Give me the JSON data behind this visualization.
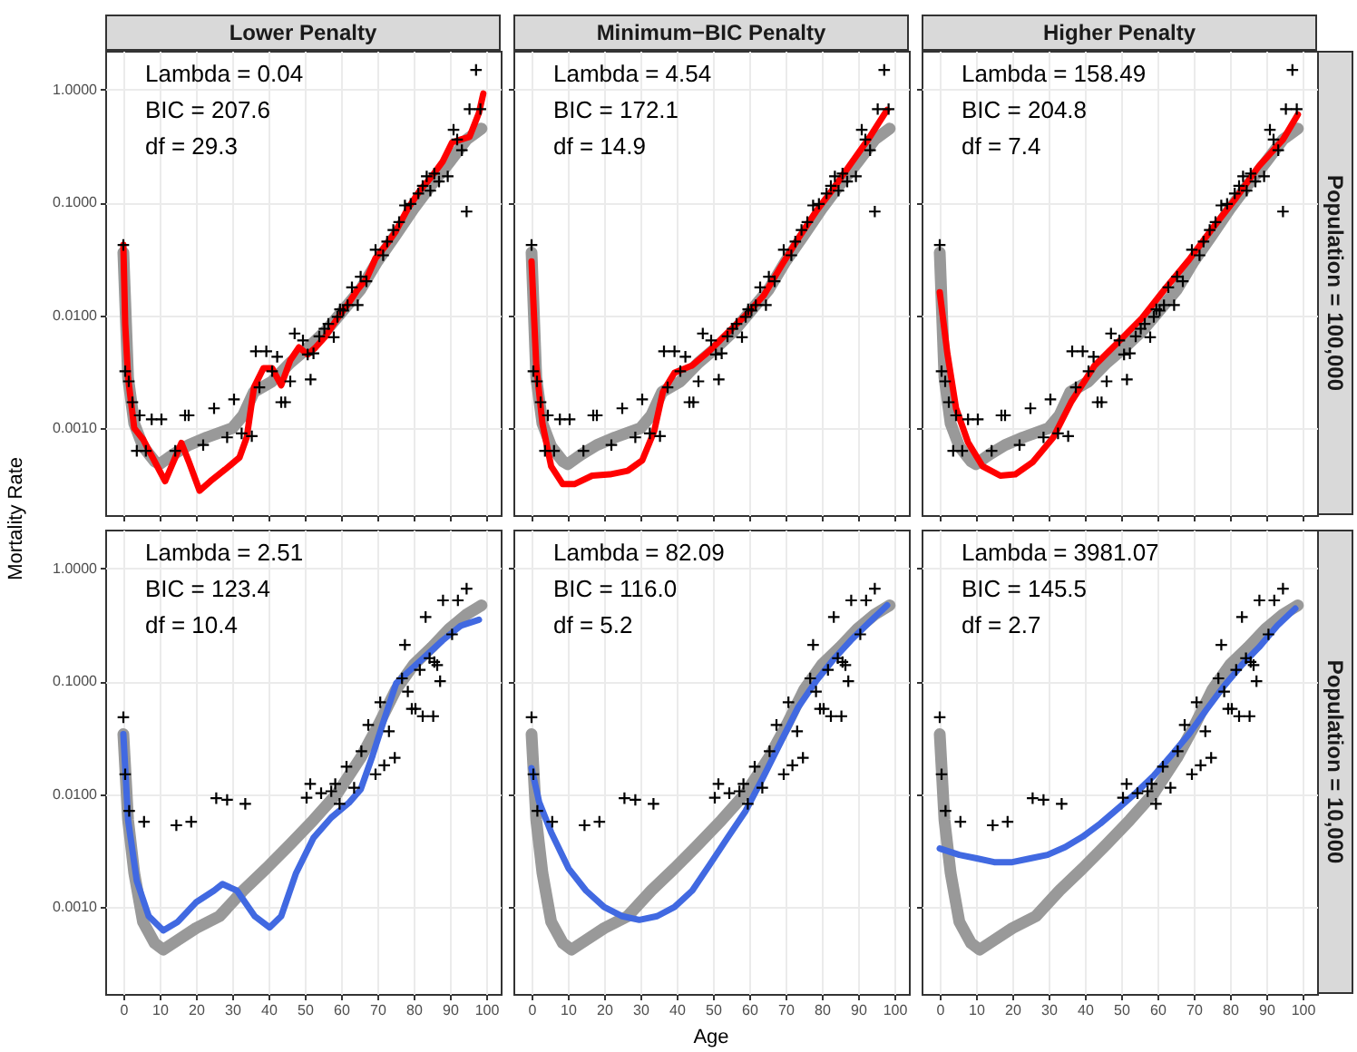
{
  "chart_data": [
    {
      "type": "line",
      "title": "Lower Penalty",
      "ylabel": "Mortality Rate",
      "annotations": [
        "Lambda = 0.04",
        "BIC = 207.6",
        "df = 29.3"
      ],
      "xlim": [
        -5,
        104
      ],
      "ylim": [
        0.00017,
        2.2
      ],
      "log": "y",
      "grid": true,
      "tick_labels": "y",
      "xticks": [
        0,
        10,
        20,
        30,
        40,
        50,
        60,
        70,
        80,
        90,
        100
      ],
      "yticks": [
        {
          "value": 0.001,
          "label": "0.0010"
        },
        {
          "value": 0.01,
          "label": "0.0100"
        },
        {
          "value": 0.1,
          "label": "0.1000"
        },
        {
          "value": 1,
          "label": "1.0000"
        }
      ],
      "series": [
        {
          "color": "#999999",
          "x": [
            0,
            1.3,
            3,
            5.4,
            8.6,
            10,
            13.5,
            18,
            23,
            30,
            33,
            36,
            41,
            46,
            51,
            56,
            60.5,
            65.4,
            70,
            75,
            80,
            85,
            90,
            94.6,
            98.7
          ],
          "values": [
            0.036,
            0.0028,
            0.0011,
            0.00069,
            0.00051,
            0.00048,
            0.00058,
            0.00071,
            0.00083,
            0.001,
            0.0013,
            0.0021,
            0.0026,
            0.0038,
            0.0052,
            0.0074,
            0.011,
            0.017,
            0.03,
            0.051,
            0.088,
            0.144,
            0.23,
            0.36,
            0.45
          ]
        },
        {
          "color": "#ff0000",
          "x": [
            0,
            0.5,
            1.3,
            3,
            5.4,
            8.6,
            11.5,
            14.3,
            16,
            18,
            21,
            24,
            28,
            32,
            34,
            36,
            38.6,
            41,
            43.5,
            46,
            48.4,
            50.8,
            53,
            55.7,
            59,
            62,
            64.6,
            67,
            69.5,
            72.7,
            75,
            78.4,
            81.7,
            85,
            88,
            90.6,
            93,
            95.4,
            98,
            99.2
          ],
          "values": [
            0.042,
            0.0084,
            0.0028,
            0.001,
            0.0008,
            0.00051,
            0.00034,
            0.00055,
            0.00074,
            0.00051,
            0.00028,
            0.00034,
            0.00043,
            0.00055,
            0.00083,
            0.0023,
            0.0034,
            0.0034,
            0.0024,
            0.004,
            0.0052,
            0.0045,
            0.0052,
            0.0065,
            0.0094,
            0.0127,
            0.017,
            0.021,
            0.032,
            0.043,
            0.055,
            0.088,
            0.127,
            0.17,
            0.23,
            0.34,
            0.36,
            0.38,
            0.62,
            0.92
          ]
        },
        {
          "type": "scatter",
          "marker": "cross",
          "color": "#000000",
          "x": [
            0,
            0.5,
            1.5,
            2.5,
            3.7,
            4.5,
            6.2,
            7.8,
            10.5,
            14.3,
            17,
            18,
            22,
            25,
            28.6,
            30.5,
            32.6,
            35.4,
            36.5,
            37.5,
            39.4,
            41,
            42.4,
            43.5,
            44.6,
            46,
            47.2,
            49.5,
            50.8,
            51.6,
            52.4,
            54,
            55.4,
            56.5,
            58,
            59,
            59.7,
            60.6,
            61.8,
            63,
            64.6,
            65.4,
            67,
            69.5,
            71.6,
            72.7,
            74.4,
            76,
            77.6,
            79.2,
            81.3,
            82.5,
            83.6,
            84.6,
            85.7,
            87,
            89.4,
            91,
            92,
            93.3,
            94.6,
            95.4,
            97.2,
            98.4
          ],
          "values": [
            0.042,
            0.0032,
            0.0026,
            0.0017,
            0.00063,
            0.0013,
            0.00063,
            0.0012,
            0.0012,
            0.00063,
            0.0013,
            0.0013,
            0.00071,
            0.0015,
            0.00083,
            0.0018,
            0.0009,
            0.00085,
            0.0048,
            0.0023,
            0.0048,
            0.0032,
            0.0043,
            0.0017,
            0.0017,
            0.0026,
            0.0069,
            0.006,
            0.0045,
            0.0027,
            0.0046,
            0.0065,
            0.0076,
            0.0084,
            0.0064,
            0.0097,
            0.0113,
            0.011,
            0.0123,
            0.0177,
            0.0123,
            0.022,
            0.02,
            0.038,
            0.034,
            0.045,
            0.057,
            0.067,
            0.094,
            0.097,
            0.12,
            0.14,
            0.17,
            0.127,
            0.18,
            0.153,
            0.17,
            0.44,
            0.36,
            0.29,
            0.083,
            0.67,
            1.49,
            0.67
          ]
        }
      ]
    },
    {
      "type": "line",
      "title": "Minimum−BIC Penalty",
      "annotations": [
        "Lambda = 4.54",
        "BIC = 172.1",
        "df = 14.9"
      ],
      "xlim": [
        -5,
        104
      ],
      "ylim": [
        0.00017,
        2.2
      ],
      "log": "y",
      "grid": true,
      "tick_labels": false,
      "xticks": [
        0,
        10,
        20,
        30,
        40,
        50,
        60,
        70,
        80,
        90,
        100
      ],
      "yticks": [
        {
          "value": 0.001,
          "label": null
        },
        {
          "value": 0.01,
          "label": null
        },
        {
          "value": 0.1,
          "label": null
        },
        {
          "value": 1,
          "label": null
        }
      ],
      "series": [
        {
          "color": "#999999",
          "x": [
            0,
            1.3,
            3,
            5.4,
            8.6,
            10,
            13.5,
            18,
            23,
            30,
            33,
            36,
            41,
            46,
            51,
            56,
            60.5,
            65.4,
            70,
            75,
            80,
            85,
            90,
            94.6,
            98.7
          ],
          "values": [
            0.036,
            0.0028,
            0.0011,
            0.00069,
            0.00051,
            0.00048,
            0.00058,
            0.00071,
            0.00083,
            0.001,
            0.0013,
            0.0021,
            0.0026,
            0.0038,
            0.0052,
            0.0074,
            0.011,
            0.017,
            0.03,
            0.051,
            0.088,
            0.144,
            0.23,
            0.36,
            0.45
          ]
        },
        {
          "color": "#ff0000",
          "x": [
            0,
            1.3,
            3,
            5.4,
            8.6,
            11.8,
            16.7,
            21.6,
            26.5,
            30.5,
            33.8,
            36.2,
            39.4,
            44.3,
            49.2,
            54,
            59,
            64,
            68.7,
            73.5,
            78.4,
            83.3,
            88,
            93,
            98
          ],
          "values": [
            0.03,
            0.0036,
            0.0011,
            0.00046,
            0.00032,
            0.00032,
            0.00038,
            0.00039,
            0.00042,
            0.00052,
            0.00094,
            0.0021,
            0.0031,
            0.0036,
            0.0049,
            0.007,
            0.01,
            0.015,
            0.027,
            0.048,
            0.083,
            0.134,
            0.22,
            0.37,
            0.66
          ]
        },
        {
          "type": "scatter",
          "marker": "cross",
          "color": "#000000",
          "x": [
            0,
            0.5,
            1.5,
            2.5,
            3.7,
            4.5,
            6.2,
            7.8,
            10.5,
            14.3,
            17,
            18,
            22,
            25,
            28.6,
            30.5,
            32.6,
            35.4,
            36.5,
            37.5,
            39.4,
            41,
            42.4,
            43.5,
            44.6,
            46,
            47.2,
            49.5,
            50.8,
            51.6,
            52.4,
            54,
            55.4,
            56.5,
            58,
            59,
            59.7,
            60.6,
            61.8,
            63,
            64.6,
            65.4,
            67,
            69.5,
            71.6,
            72.7,
            74.4,
            76,
            77.6,
            79.2,
            81.3,
            82.5,
            83.6,
            84.6,
            85.7,
            87,
            89.4,
            91,
            92,
            93.3,
            94.6,
            95.4,
            97.2,
            98.4
          ],
          "values": [
            0.042,
            0.0032,
            0.0026,
            0.0017,
            0.00063,
            0.0013,
            0.00063,
            0.0012,
            0.0012,
            0.00063,
            0.0013,
            0.0013,
            0.00071,
            0.0015,
            0.00083,
            0.0018,
            0.0009,
            0.00085,
            0.0048,
            0.0023,
            0.0048,
            0.0032,
            0.0043,
            0.0017,
            0.0017,
            0.0026,
            0.0069,
            0.006,
            0.0045,
            0.0027,
            0.0046,
            0.0065,
            0.0076,
            0.0084,
            0.0064,
            0.0097,
            0.0113,
            0.011,
            0.0123,
            0.0177,
            0.0123,
            0.022,
            0.02,
            0.038,
            0.034,
            0.045,
            0.057,
            0.067,
            0.094,
            0.097,
            0.12,
            0.14,
            0.17,
            0.127,
            0.18,
            0.153,
            0.17,
            0.44,
            0.36,
            0.29,
            0.083,
            0.67,
            1.49,
            0.67
          ]
        }
      ]
    },
    {
      "type": "line",
      "title": "Higher Penalty",
      "y2label": "Population = 100,000",
      "annotations": [
        "Lambda = 158.49",
        "BIC = 204.8",
        "df = 7.4"
      ],
      "xlim": [
        -5,
        104
      ],
      "ylim": [
        0.00017,
        2.2
      ],
      "log": "y",
      "grid": true,
      "tick_labels": false,
      "xticks": [
        0,
        10,
        20,
        30,
        40,
        50,
        60,
        70,
        80,
        90,
        100
      ],
      "yticks": [
        {
          "value": 0.001,
          "label": null
        },
        {
          "value": 0.01,
          "label": null
        },
        {
          "value": 0.1,
          "label": null
        },
        {
          "value": 1,
          "label": null
        }
      ],
      "series": [
        {
          "color": "#999999",
          "x": [
            0,
            1.3,
            3,
            5.4,
            8.6,
            10,
            13.5,
            18,
            23,
            30,
            33,
            36,
            41,
            46,
            51,
            56,
            60.5,
            65.4,
            70,
            75,
            80,
            85,
            90,
            94.6,
            98.7
          ],
          "values": [
            0.036,
            0.0028,
            0.0011,
            0.00069,
            0.00051,
            0.00048,
            0.00058,
            0.00071,
            0.00083,
            0.001,
            0.0013,
            0.0021,
            0.0026,
            0.0038,
            0.0052,
            0.0074,
            0.011,
            0.017,
            0.03,
            0.051,
            0.088,
            0.144,
            0.23,
            0.36,
            0.45
          ]
        },
        {
          "color": "#ff0000",
          "x": [
            0,
            2.1,
            4.5,
            7.8,
            11.8,
            16.7,
            20.8,
            25.6,
            31.3,
            36.2,
            42.7,
            49.2,
            55.7,
            62,
            68.7,
            75,
            81.7,
            88,
            94.6,
            98.7
          ],
          "values": [
            0.016,
            0.0046,
            0.0015,
            0.00075,
            0.00046,
            0.00038,
            0.00039,
            0.0005,
            0.00083,
            0.0017,
            0.0036,
            0.0058,
            0.0094,
            0.017,
            0.031,
            0.058,
            0.11,
            0.21,
            0.36,
            0.6
          ]
        },
        {
          "type": "scatter",
          "marker": "cross",
          "color": "#000000",
          "x": [
            0,
            0.5,
            1.5,
            2.5,
            3.7,
            4.5,
            6.2,
            7.8,
            10.5,
            14.3,
            17,
            18,
            22,
            25,
            28.6,
            30.5,
            32.6,
            35.4,
            36.5,
            37.5,
            39.4,
            41,
            42.4,
            43.5,
            44.6,
            46,
            47.2,
            49.5,
            50.8,
            51.6,
            52.4,
            54,
            55.4,
            56.5,
            58,
            59,
            59.7,
            60.6,
            61.8,
            63,
            64.6,
            65.4,
            67,
            69.5,
            71.6,
            72.7,
            74.4,
            76,
            77.6,
            79.2,
            81.3,
            82.5,
            83.6,
            84.6,
            85.7,
            87,
            89.4,
            91,
            92,
            93.3,
            94.6,
            95.4,
            97.2,
            98.4
          ],
          "values": [
            0.042,
            0.0032,
            0.0026,
            0.0017,
            0.00063,
            0.0013,
            0.00063,
            0.0012,
            0.0012,
            0.00063,
            0.0013,
            0.0013,
            0.00071,
            0.0015,
            0.00083,
            0.0018,
            0.0009,
            0.00085,
            0.0048,
            0.0023,
            0.0048,
            0.0032,
            0.0043,
            0.0017,
            0.0017,
            0.0026,
            0.0069,
            0.006,
            0.0045,
            0.0027,
            0.0046,
            0.0065,
            0.0076,
            0.0084,
            0.0064,
            0.0097,
            0.0113,
            0.011,
            0.0123,
            0.0177,
            0.0123,
            0.022,
            0.02,
            0.038,
            0.034,
            0.045,
            0.057,
            0.067,
            0.094,
            0.097,
            0.12,
            0.14,
            0.17,
            0.127,
            0.18,
            0.153,
            0.17,
            0.44,
            0.36,
            0.29,
            0.083,
            0.67,
            1.49,
            0.67
          ]
        }
      ]
    },
    {
      "type": "line",
      "annotations": [
        "Lambda = 2.51",
        "BIC = 123.4",
        "df = 10.4"
      ],
      "xlim": [
        -5,
        104
      ],
      "ylim": [
        0.00017,
        2.2
      ],
      "log": "y",
      "grid": true,
      "xticks": [
        0,
        10,
        20,
        30,
        40,
        50,
        60,
        70,
        80,
        90,
        100
      ],
      "yticks": [
        {
          "value": 0.001,
          "label": "0.0010"
        },
        {
          "value": 0.01,
          "label": "0.0100"
        },
        {
          "value": 0.1,
          "label": "0.1000"
        },
        {
          "value": 1,
          "label": "1.0000"
        }
      ],
      "series": [
        {
          "color": "#999999",
          "x": [
            0,
            1.3,
            3,
            5.4,
            8.6,
            11,
            15,
            20,
            26.5,
            33,
            39.4,
            46,
            52.4,
            59,
            65.4,
            70.3,
            75.2,
            80,
            85,
            89.8,
            94.6,
            98.7
          ],
          "values": [
            0.034,
            0.0059,
            0.002,
            0.00074,
            0.00048,
            0.00042,
            0.00051,
            0.00065,
            0.00083,
            0.0014,
            0.0022,
            0.0036,
            0.0059,
            0.0102,
            0.021,
            0.041,
            0.085,
            0.14,
            0.2,
            0.29,
            0.39,
            0.47
          ]
        },
        {
          "color": "#4169e1",
          "x": [
            0,
            1.3,
            3.7,
            7,
            11,
            15,
            20,
            25,
            27.3,
            31.3,
            36.2,
            40.3,
            43.5,
            47.6,
            52.4,
            57.3,
            62.2,
            65.4,
            68.7,
            71.9,
            75.2,
            78.4,
            83.3,
            88,
            93,
            98
          ],
          "values": [
            0.034,
            0.0059,
            0.0017,
            0.00083,
            0.00062,
            0.00074,
            0.0011,
            0.0014,
            0.0016,
            0.0014,
            0.00083,
            0.00066,
            0.00083,
            0.002,
            0.0041,
            0.0062,
            0.0084,
            0.011,
            0.022,
            0.046,
            0.096,
            0.12,
            0.167,
            0.23,
            0.31,
            0.35
          ]
        },
        {
          "type": "scatter",
          "marker": "cross",
          "color": "#000000",
          "x": [
            0,
            0.5,
            1.6,
            5.7,
            14.6,
            18.7,
            25.6,
            28.6,
            33.6,
            50.5,
            51.5,
            54.5,
            57.3,
            58.4,
            59.6,
            61.5,
            63.6,
            65.6,
            67.5,
            69.5,
            70.8,
            71.9,
            73.2,
            74.8,
            76.8,
            77.6,
            78.4,
            79.5,
            80.5,
            81.7,
            82.5,
            83.3,
            84.4,
            85.4,
            85.7,
            86.5,
            87.3,
            88.1,
            90.6,
            92.2,
            94.6
          ],
          "values": [
            0.048,
            0.015,
            0.0071,
            0.0057,
            0.0053,
            0.0057,
            0.0092,
            0.0089,
            0.0082,
            0.0093,
            0.0123,
            0.0102,
            0.0106,
            0.0123,
            0.0082,
            0.0175,
            0.0114,
            0.024,
            0.041,
            0.015,
            0.065,
            0.018,
            0.036,
            0.021,
            0.106,
            0.21,
            0.081,
            0.057,
            0.057,
            0.126,
            0.049,
            0.37,
            0.16,
            0.049,
            0.148,
            0.139,
            0.1,
            0.52,
            0.26,
            0.52,
            0.66
          ]
        }
      ]
    },
    {
      "type": "line",
      "xlabel": "Age",
      "annotations": [
        "Lambda = 82.09",
        "BIC = 116.0",
        "df = 5.2"
      ],
      "xlim": [
        -5,
        104
      ],
      "ylim": [
        0.00017,
        2.2
      ],
      "log": "y",
      "grid": true,
      "tick_labels": "x",
      "xticks": [
        0,
        10,
        20,
        30,
        40,
        50,
        60,
        70,
        80,
        90,
        100
      ],
      "yticks": [
        {
          "value": 0.001,
          "label": null
        },
        {
          "value": 0.01,
          "label": null
        },
        {
          "value": 0.1,
          "label": null
        },
        {
          "value": 1,
          "label": null
        }
      ],
      "series": [
        {
          "color": "#999999",
          "x": [
            0,
            1.3,
            3,
            5.4,
            8.6,
            11,
            15,
            20,
            26.5,
            33,
            39.4,
            46,
            52.4,
            59,
            65.4,
            70.3,
            75.2,
            80,
            85,
            89.8,
            94.6,
            98.7
          ],
          "values": [
            0.034,
            0.0059,
            0.002,
            0.00074,
            0.00048,
            0.00042,
            0.00051,
            0.00065,
            0.00083,
            0.0014,
            0.0022,
            0.0036,
            0.0059,
            0.0102,
            0.021,
            0.041,
            0.085,
            0.14,
            0.2,
            0.29,
            0.39,
            0.47
          ]
        },
        {
          "color": "#4169e1",
          "x": [
            0,
            2.1,
            5.4,
            10.2,
            15,
            20,
            25,
            29.7,
            34.6,
            39.4,
            44.3,
            49.2,
            54,
            59,
            63.8,
            68.7,
            73.5,
            78.4,
            83.3,
            88,
            93,
            98
          ],
          "values": [
            0.017,
            0.0085,
            0.0046,
            0.0022,
            0.0014,
            0.001,
            0.00083,
            0.00077,
            0.00083,
            0.001,
            0.0014,
            0.0024,
            0.0041,
            0.0071,
            0.014,
            0.029,
            0.059,
            0.1,
            0.157,
            0.23,
            0.33,
            0.47
          ]
        },
        {
          "type": "scatter",
          "marker": "cross",
          "color": "#000000",
          "x": [
            0,
            0.5,
            1.6,
            5.7,
            14.6,
            18.7,
            25.6,
            28.6,
            33.6,
            50.5,
            51.5,
            54.5,
            57.3,
            58.4,
            59.6,
            61.5,
            63.6,
            65.6,
            67.5,
            69.5,
            70.8,
            71.9,
            73.2,
            74.8,
            76.8,
            77.6,
            78.4,
            79.5,
            80.5,
            81.7,
            82.5,
            83.3,
            84.4,
            85.4,
            85.7,
            86.5,
            87.3,
            88.1,
            90.6,
            92.2,
            94.6
          ],
          "values": [
            0.048,
            0.015,
            0.0071,
            0.0057,
            0.0053,
            0.0057,
            0.0092,
            0.0089,
            0.0082,
            0.0093,
            0.0123,
            0.0102,
            0.0106,
            0.0123,
            0.0082,
            0.0175,
            0.0114,
            0.024,
            0.041,
            0.015,
            0.065,
            0.018,
            0.036,
            0.021,
            0.106,
            0.21,
            0.081,
            0.057,
            0.057,
            0.126,
            0.049,
            0.37,
            0.16,
            0.049,
            0.148,
            0.139,
            0.1,
            0.52,
            0.26,
            0.52,
            0.66
          ]
        }
      ]
    },
    {
      "type": "line",
      "y2label": "Population = 10,000",
      "annotations": [
        "Lambda = 3981.07",
        "BIC = 145.5",
        "df = 2.7"
      ],
      "xlim": [
        -5,
        104
      ],
      "ylim": [
        0.00017,
        2.2
      ],
      "log": "y",
      "grid": true,
      "tick_labels": "x",
      "xticks": [
        0,
        10,
        20,
        30,
        40,
        50,
        60,
        70,
        80,
        90,
        100
      ],
      "yticks": [
        {
          "value": 0.001,
          "label": null
        },
        {
          "value": 0.01,
          "label": null
        },
        {
          "value": 0.1,
          "label": null
        },
        {
          "value": 1,
          "label": null
        }
      ],
      "series": [
        {
          "color": "#999999",
          "x": [
            0,
            1.3,
            3,
            5.4,
            8.6,
            11,
            15,
            20,
            26.5,
            33,
            39.4,
            46,
            52.4,
            59,
            65.4,
            70.3,
            75.2,
            80,
            85,
            89.8,
            94.6,
            98.7
          ],
          "values": [
            0.034,
            0.0059,
            0.002,
            0.00074,
            0.00048,
            0.00042,
            0.00051,
            0.00065,
            0.00083,
            0.0014,
            0.0022,
            0.0036,
            0.0059,
            0.0102,
            0.021,
            0.041,
            0.085,
            0.14,
            0.2,
            0.29,
            0.39,
            0.47
          ]
        },
        {
          "color": "#4169e1",
          "x": [
            0,
            5.4,
            10.2,
            15,
            20,
            25,
            29.7,
            34.6,
            39.4,
            44.3,
            49.2,
            54,
            59,
            63.8,
            68.7,
            73.5,
            78.4,
            83.3,
            88,
            93,
            98
          ],
          "values": [
            0.0033,
            0.0029,
            0.0027,
            0.0025,
            0.0025,
            0.0027,
            0.0029,
            0.0034,
            0.0042,
            0.0055,
            0.0075,
            0.0102,
            0.0146,
            0.022,
            0.034,
            0.056,
            0.091,
            0.14,
            0.2,
            0.31,
            0.44
          ]
        },
        {
          "type": "scatter",
          "marker": "cross",
          "color": "#000000",
          "x": [
            0,
            0.5,
            1.6,
            5.7,
            14.6,
            18.7,
            25.6,
            28.6,
            33.6,
            50.5,
            51.5,
            54.5,
            57.3,
            58.4,
            59.6,
            61.5,
            63.6,
            65.6,
            67.5,
            69.5,
            70.8,
            71.9,
            73.2,
            74.8,
            76.8,
            77.6,
            78.4,
            79.5,
            80.5,
            81.7,
            82.5,
            83.3,
            84.4,
            85.4,
            85.7,
            86.5,
            87.3,
            88.1,
            90.6,
            92.2,
            94.6
          ],
          "values": [
            0.048,
            0.015,
            0.0071,
            0.0057,
            0.0053,
            0.0057,
            0.0092,
            0.0089,
            0.0082,
            0.0093,
            0.0123,
            0.0102,
            0.0106,
            0.0123,
            0.0082,
            0.0175,
            0.0114,
            0.024,
            0.041,
            0.015,
            0.065,
            0.018,
            0.036,
            0.021,
            0.106,
            0.21,
            0.081,
            0.057,
            0.057,
            0.126,
            0.049,
            0.37,
            0.16,
            0.049,
            0.148,
            0.139,
            0.1,
            0.52,
            0.26,
            0.52,
            0.66
          ]
        }
      ]
    }
  ]
}
